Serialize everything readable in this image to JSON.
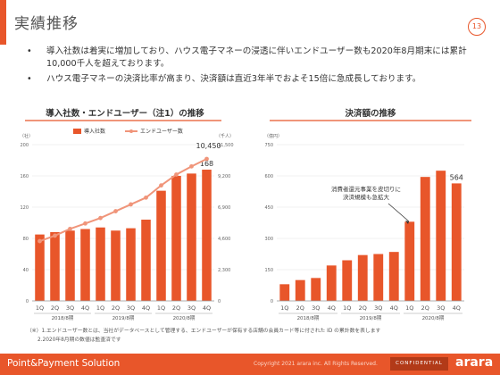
{
  "page": {
    "title": "実績推移",
    "page_number": "13",
    "bullets": [
      "導入社数は着実に増加しており、ハウス電子マネーの浸透に伴いエンドユーザー数も2020年8月期末には累計10,000千人を超えております。",
      "ハウス電子マネーの決済比率が高まり、決済額は直近3年半でおよそ15倍に急成長しております。"
    ],
    "notes": [
      "（※）1.エンドユーザー数とは、当社がデータベースとして管理する、エンドユーザーが保有する店舗の会員カード等に付された ID の累計数を表します",
      "2.2020年8月期の数値は監査済です"
    ],
    "footer": {
      "left": "Point&Payment Solution",
      "copyright": "Copyright 2021 arara inc. All Rights Reserved.",
      "confidential": "CONFIDENTIAL",
      "logo": "arara"
    }
  },
  "chart_data": [
    {
      "type": "bar",
      "title": "導入社数・エンドユーザー（注1）の推移",
      "categories": [
        "1Q",
        "2Q",
        "3Q",
        "4Q",
        "1Q",
        "2Q",
        "3Q",
        "4Q",
        "1Q",
        "2Q",
        "3Q",
        "4Q"
      ],
      "year_groups": [
        "2018/8期",
        "2019/8期",
        "2020/8期"
      ],
      "left_axis": {
        "unit": "（社）",
        "ticks": [
          "0",
          "40",
          "80",
          "120",
          "160",
          "200"
        ],
        "ylim": [
          0,
          200
        ]
      },
      "right_axis": {
        "unit": "（千人）",
        "ticks": [
          "0",
          "2,300",
          "4,600",
          "6,900",
          "9,200",
          "11,500"
        ],
        "ylim": [
          0,
          11500
        ]
      },
      "series": [
        {
          "name": "導入社数",
          "kind": "bar",
          "axis": "left",
          "color": "#e8562a",
          "values": [
            85,
            88,
            90,
            92,
            94,
            90,
            93,
            104,
            141,
            160,
            163,
            168
          ]
        },
        {
          "name": "エンドユーザー数",
          "kind": "line",
          "axis": "right",
          "color": "#f0957a",
          "values": [
            4400,
            4800,
            5300,
            5700,
            6100,
            6600,
            7100,
            7600,
            8500,
            9300,
            9900,
            10450
          ]
        }
      ],
      "labels": {
        "last_line": "10,450",
        "last_bar": "168"
      },
      "grid": true,
      "legend": "top"
    },
    {
      "type": "bar",
      "title": "決済額の推移",
      "categories": [
        "1Q",
        "2Q",
        "3Q",
        "4Q",
        "1Q",
        "2Q",
        "3Q",
        "4Q",
        "1Q",
        "2Q",
        "3Q",
        "4Q"
      ],
      "year_groups": [
        "2018/8期",
        "2019/8期",
        "2020/8期"
      ],
      "left_axis": {
        "unit": "（億円）",
        "ticks": [
          "0",
          "150",
          "300",
          "450",
          "600",
          "750"
        ],
        "ylim": [
          0,
          750
        ]
      },
      "series": [
        {
          "name": "決済額",
          "kind": "bar",
          "color": "#e8562a",
          "values": [
            80,
            100,
            110,
            170,
            195,
            220,
            225,
            235,
            380,
            595,
            625,
            564
          ]
        }
      ],
      "labels": {
        "last_bar": "564"
      },
      "annotation": "消費者還元事業を皮切りに\n決済規模も急拡大",
      "grid": true
    }
  ]
}
